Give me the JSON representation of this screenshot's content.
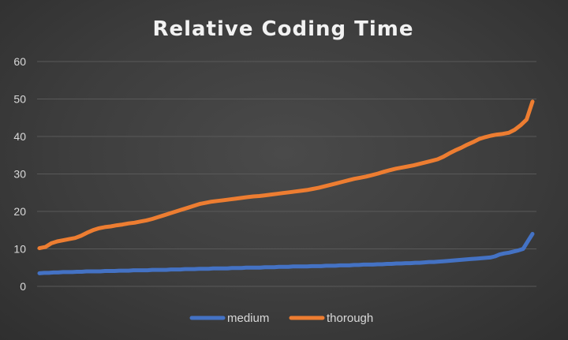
{
  "chart_data": {
    "type": "line",
    "title": "Relative Coding Time",
    "xlabel": "",
    "ylabel": "",
    "ylim": [
      0,
      60
    ],
    "yticks": [
      0,
      10,
      20,
      30,
      40,
      50,
      60
    ],
    "grid": true,
    "legend_position": "bottom",
    "series": [
      {
        "name": "medium",
        "color": "#4472c4",
        "values": [
          3.5,
          3.6,
          3.6,
          3.7,
          3.7,
          3.8,
          3.8,
          3.8,
          3.9,
          3.9,
          4.0,
          4.0,
          4.0,
          4.0,
          4.1,
          4.1,
          4.1,
          4.2,
          4.2,
          4.2,
          4.3,
          4.3,
          4.3,
          4.3,
          4.4,
          4.4,
          4.4,
          4.4,
          4.5,
          4.5,
          4.5,
          4.6,
          4.6,
          4.6,
          4.7,
          4.7,
          4.7,
          4.8,
          4.8,
          4.8,
          4.8,
          4.9,
          4.9,
          4.9,
          5.0,
          5.0,
          5.0,
          5.0,
          5.1,
          5.1,
          5.1,
          5.2,
          5.2,
          5.2,
          5.3,
          5.3,
          5.3,
          5.3,
          5.4,
          5.4,
          5.4,
          5.5,
          5.5,
          5.5,
          5.6,
          5.6,
          5.6,
          5.7,
          5.7,
          5.8,
          5.8,
          5.8,
          5.9,
          5.9,
          6.0,
          6.0,
          6.1,
          6.1,
          6.2,
          6.2,
          6.3,
          6.3,
          6.4,
          6.5,
          6.5,
          6.6,
          6.7,
          6.8,
          6.9,
          7.0,
          7.1,
          7.2,
          7.3,
          7.4,
          7.5,
          7.6,
          7.7,
          8.0,
          8.5,
          8.8,
          9.0,
          9.3,
          9.6,
          10.0,
          12.0,
          14.0
        ]
      },
      {
        "name": "thorough",
        "color": "#ed7d31",
        "values": [
          10.2,
          10.5,
          11.5,
          12.0,
          12.3,
          12.6,
          12.9,
          13.5,
          14.3,
          15.0,
          15.5,
          15.8,
          16.0,
          16.3,
          16.5,
          16.8,
          17.0,
          17.3,
          17.6,
          18.0,
          18.5,
          19.0,
          19.5,
          20.0,
          20.5,
          21.0,
          21.5,
          22.0,
          22.3,
          22.6,
          22.8,
          23.0,
          23.2,
          23.4,
          23.6,
          23.8,
          24.0,
          24.1,
          24.3,
          24.5,
          24.7,
          24.9,
          25.1,
          25.3,
          25.5,
          25.7,
          26.0,
          26.3,
          26.7,
          27.1,
          27.5,
          27.9,
          28.3,
          28.7,
          29.0,
          29.3,
          29.7,
          30.1,
          30.6,
          31.0,
          31.4,
          31.7,
          32.0,
          32.3,
          32.7,
          33.1,
          33.5,
          33.9,
          34.6,
          35.5,
          36.3,
          37.0,
          37.8,
          38.5,
          39.3,
          39.8,
          40.2,
          40.5,
          40.7,
          41.0,
          41.8,
          43.0,
          44.5,
          49.3
        ]
      }
    ]
  }
}
